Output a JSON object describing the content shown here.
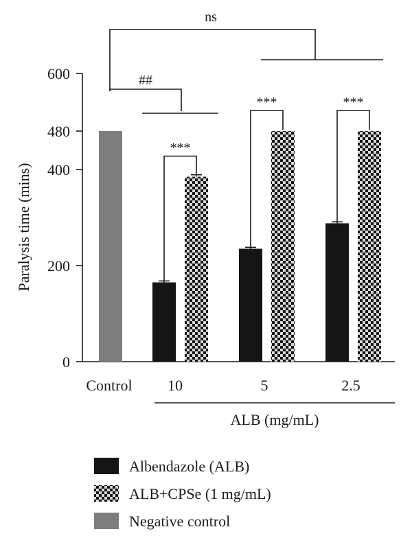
{
  "chart_data": {
    "type": "bar",
    "ylabel": "Paralysis time (mins)",
    "xgroup_label": "ALB (mg/mL)",
    "yticks": [
      0,
      200,
      400,
      480,
      600
    ],
    "ylim": [
      0,
      600
    ],
    "categories": [
      "Control",
      "10",
      "5",
      "2.5"
    ],
    "series": [
      {
        "name": "Albendazole (ALB)",
        "color": "#151515",
        "pattern": "solid",
        "values": [
          null,
          165,
          235,
          288
        ],
        "errors": [
          null,
          3,
          3,
          3
        ]
      },
      {
        "name": "ALB+CPSe (1 mg/mL)",
        "color": "#151515",
        "pattern": "checker",
        "values": [
          null,
          385,
          480,
          480
        ],
        "errors": [
          null,
          4,
          0,
          0
        ]
      },
      {
        "name": "Negative control",
        "color": "#7d7d7d",
        "pattern": "solid",
        "values": [
          480,
          null,
          null,
          null
        ],
        "errors": [
          0,
          null,
          null,
          null
        ]
      }
    ],
    "annotations": {
      "ns": "ns",
      "hash": "##",
      "stars": [
        "***",
        "***",
        "***"
      ]
    }
  }
}
